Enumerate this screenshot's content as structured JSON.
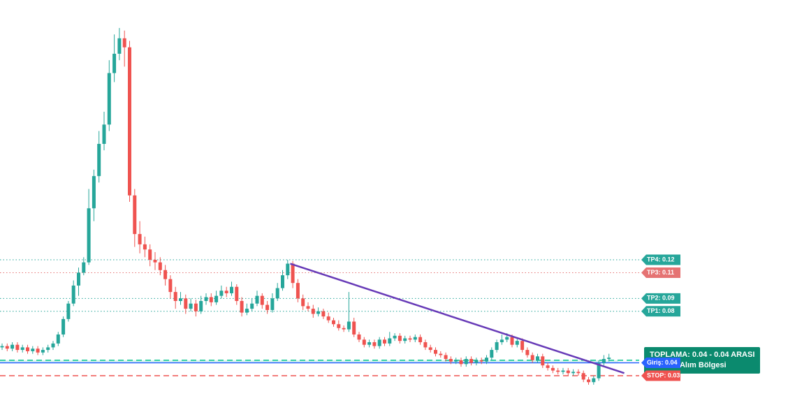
{
  "chart_data": {
    "type": "candlestick",
    "candles": [
      [
        0.052,
        0.055,
        0.05,
        0.053
      ],
      [
        0.053,
        0.055,
        0.049,
        0.051
      ],
      [
        0.051,
        0.056,
        0.049,
        0.054
      ],
      [
        0.054,
        0.056,
        0.048,
        0.05
      ],
      [
        0.05,
        0.054,
        0.048,
        0.052
      ],
      [
        0.052,
        0.054,
        0.047,
        0.049
      ],
      [
        0.049,
        0.053,
        0.047,
        0.051
      ],
      [
        0.051,
        0.053,
        0.046,
        0.048
      ],
      [
        0.048,
        0.052,
        0.046,
        0.05
      ],
      [
        0.05,
        0.054,
        0.048,
        0.052
      ],
      [
        0.052,
        0.057,
        0.05,
        0.055
      ],
      [
        0.055,
        0.064,
        0.053,
        0.062
      ],
      [
        0.062,
        0.076,
        0.06,
        0.074
      ],
      [
        0.074,
        0.088,
        0.072,
        0.086
      ],
      [
        0.086,
        0.104,
        0.084,
        0.1
      ],
      [
        0.1,
        0.114,
        0.092,
        0.11
      ],
      [
        0.11,
        0.122,
        0.108,
        0.118
      ],
      [
        0.118,
        0.175,
        0.116,
        0.16
      ],
      [
        0.16,
        0.19,
        0.15,
        0.185
      ],
      [
        0.185,
        0.22,
        0.18,
        0.21
      ],
      [
        0.21,
        0.235,
        0.205,
        0.225
      ],
      [
        0.225,
        0.275,
        0.22,
        0.265
      ],
      [
        0.265,
        0.295,
        0.258,
        0.28
      ],
      [
        0.28,
        0.3,
        0.275,
        0.292
      ],
      [
        0.292,
        0.298,
        0.27,
        0.285
      ],
      [
        0.285,
        0.29,
        0.165,
        0.17
      ],
      [
        0.17,
        0.175,
        0.13,
        0.14
      ],
      [
        0.14,
        0.15,
        0.125,
        0.132
      ],
      [
        0.132,
        0.138,
        0.122,
        0.128
      ],
      [
        0.128,
        0.132,
        0.115,
        0.12
      ],
      [
        0.12,
        0.126,
        0.112,
        0.118
      ],
      [
        0.118,
        0.122,
        0.108,
        0.112
      ],
      [
        0.112,
        0.116,
        0.1,
        0.105
      ],
      [
        0.105,
        0.108,
        0.09,
        0.095
      ],
      [
        0.095,
        0.099,
        0.082,
        0.088
      ],
      [
        0.088,
        0.095,
        0.085,
        0.09
      ],
      [
        0.09,
        0.093,
        0.078,
        0.082
      ],
      [
        0.082,
        0.09,
        0.08,
        0.086
      ],
      [
        0.086,
        0.089,
        0.076,
        0.08
      ],
      [
        0.08,
        0.092,
        0.078,
        0.088
      ],
      [
        0.088,
        0.094,
        0.085,
        0.091
      ],
      [
        0.091,
        0.094,
        0.084,
        0.087
      ],
      [
        0.087,
        0.096,
        0.085,
        0.092
      ],
      [
        0.092,
        0.1,
        0.09,
        0.096
      ],
      [
        0.096,
        0.099,
        0.091,
        0.094
      ],
      [
        0.094,
        0.103,
        0.092,
        0.099
      ],
      [
        0.099,
        0.101,
        0.085,
        0.088
      ],
      [
        0.088,
        0.091,
        0.076,
        0.079
      ],
      [
        0.079,
        0.086,
        0.077,
        0.082
      ],
      [
        0.082,
        0.09,
        0.08,
        0.086
      ],
      [
        0.086,
        0.096,
        0.084,
        0.092
      ],
      [
        0.092,
        0.094,
        0.082,
        0.085
      ],
      [
        0.085,
        0.088,
        0.078,
        0.081
      ],
      [
        0.081,
        0.094,
        0.079,
        0.09
      ],
      [
        0.09,
        0.102,
        0.088,
        0.098
      ],
      [
        0.098,
        0.112,
        0.096,
        0.108
      ],
      [
        0.108,
        0.12,
        0.105,
        0.117
      ],
      [
        0.117,
        0.119,
        0.098,
        0.102
      ],
      [
        0.102,
        0.105,
        0.087,
        0.09
      ],
      [
        0.09,
        0.093,
        0.081,
        0.084
      ],
      [
        0.084,
        0.087,
        0.08,
        0.082
      ],
      [
        0.082,
        0.085,
        0.075,
        0.078
      ],
      [
        0.078,
        0.083,
        0.076,
        0.08
      ],
      [
        0.08,
        0.082,
        0.074,
        0.076
      ],
      [
        0.076,
        0.079,
        0.071,
        0.073
      ],
      [
        0.073,
        0.075,
        0.068,
        0.07
      ],
      [
        0.07,
        0.073,
        0.065,
        0.067
      ],
      [
        0.067,
        0.069,
        0.064,
        0.066
      ],
      [
        0.066,
        0.095,
        0.064,
        0.072
      ],
      [
        0.072,
        0.075,
        0.06,
        0.062
      ],
      [
        0.062,
        0.064,
        0.056,
        0.058
      ],
      [
        0.058,
        0.06,
        0.052,
        0.054
      ],
      [
        0.054,
        0.058,
        0.052,
        0.056
      ],
      [
        0.056,
        0.058,
        0.051,
        0.053
      ],
      [
        0.053,
        0.06,
        0.051,
        0.058
      ],
      [
        0.058,
        0.06,
        0.053,
        0.055
      ],
      [
        0.055,
        0.064,
        0.053,
        0.059
      ],
      [
        0.059,
        0.063,
        0.057,
        0.061
      ],
      [
        0.061,
        0.063,
        0.055,
        0.057
      ],
      [
        0.057,
        0.061,
        0.055,
        0.059
      ],
      [
        0.059,
        0.061,
        0.056,
        0.058
      ],
      [
        0.058,
        0.062,
        0.056,
        0.06
      ],
      [
        0.06,
        0.062,
        0.054,
        0.056
      ],
      [
        0.056,
        0.058,
        0.05,
        0.052
      ],
      [
        0.052,
        0.054,
        0.048,
        0.05
      ],
      [
        0.05,
        0.052,
        0.045,
        0.047
      ],
      [
        0.047,
        0.049,
        0.044,
        0.046
      ],
      [
        0.046,
        0.048,
        0.041,
        0.043
      ],
      [
        0.043,
        0.045,
        0.039,
        0.041
      ],
      [
        0.041,
        0.044,
        0.039,
        0.042
      ],
      [
        0.042,
        0.044,
        0.037,
        0.039
      ],
      [
        0.039,
        0.045,
        0.037,
        0.043
      ],
      [
        0.043,
        0.045,
        0.038,
        0.04
      ],
      [
        0.04,
        0.044,
        0.038,
        0.042
      ],
      [
        0.042,
        0.044,
        0.039,
        0.041
      ],
      [
        0.041,
        0.046,
        0.039,
        0.044
      ],
      [
        0.044,
        0.052,
        0.042,
        0.05
      ],
      [
        0.05,
        0.058,
        0.048,
        0.056
      ],
      [
        0.056,
        0.062,
        0.054,
        0.058
      ],
      [
        0.058,
        0.063,
        0.056,
        0.06
      ],
      [
        0.06,
        0.062,
        0.052,
        0.054
      ],
      [
        0.054,
        0.059,
        0.052,
        0.057
      ],
      [
        0.057,
        0.059,
        0.048,
        0.05
      ],
      [
        0.05,
        0.052,
        0.044,
        0.046
      ],
      [
        0.046,
        0.048,
        0.04,
        0.042
      ],
      [
        0.042,
        0.047,
        0.04,
        0.045
      ],
      [
        0.045,
        0.047,
        0.036,
        0.038
      ],
      [
        0.038,
        0.04,
        0.034,
        0.036
      ],
      [
        0.036,
        0.038,
        0.032,
        0.034
      ],
      [
        0.034,
        0.036,
        0.031,
        0.033
      ],
      [
        0.033,
        0.036,
        0.031,
        0.034
      ],
      [
        0.034,
        0.036,
        0.03,
        0.032
      ],
      [
        0.032,
        0.035,
        0.03,
        0.033
      ],
      [
        0.033,
        0.035,
        0.03,
        0.032
      ],
      [
        0.032,
        0.034,
        0.025,
        0.027
      ],
      [
        0.027,
        0.029,
        0.023,
        0.025
      ],
      [
        0.025,
        0.03,
        0.023,
        0.028
      ],
      [
        0.028,
        0.042,
        0.026,
        0.04
      ],
      [
        0.04,
        0.046,
        0.038,
        0.043
      ],
      [
        0.043,
        0.047,
        0.041,
        0.044
      ]
    ],
    "colors": {
      "up": "#26a69a",
      "down": "#ef5350"
    },
    "ylim": [
      0,
      0.32
    ],
    "levels": [
      {
        "label": "TP4: 0.12",
        "value": 0.12,
        "color": "#26a69a",
        "style": "dotted"
      },
      {
        "label": "TP3: 0.11",
        "value": 0.11,
        "color": "#e57373",
        "style": "dotted"
      },
      {
        "label": "TP2: 0.09",
        "value": 0.09,
        "color": "#26a69a",
        "style": "dotted"
      },
      {
        "label": "TP1: 0.08",
        "value": 0.08,
        "color": "#26a69a",
        "style": "dotted"
      },
      {
        "label": "Giriş: 0.04",
        "value": 0.04,
        "color": "#2962ff",
        "style": "solid"
      },
      {
        "label": "STOP: 0.03",
        "value": 0.03,
        "color": "#ef5350",
        "style": "dashed"
      }
    ],
    "zone": {
      "title": "TOPLAMA: 0.04 - 0.04 ARASI",
      "subtitle": "Güvenli Alım Bölgesi",
      "low": 0.04,
      "high": 0.042,
      "color": "#00c48c"
    },
    "trendline": {
      "x": [
        56.5,
        122
      ],
      "y": [
        0.117,
        0.032
      ],
      "color": "#673ab7"
    }
  }
}
